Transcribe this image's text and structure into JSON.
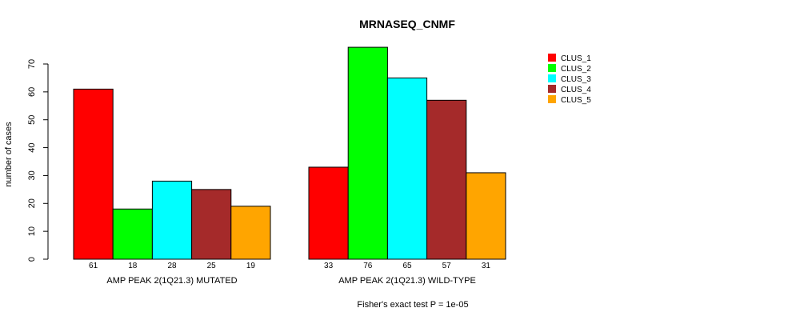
{
  "chart_data": {
    "type": "bar",
    "title": "MRNASEQ_CNMF",
    "ylabel": "number of cases",
    "ylim": [
      0,
      70
    ],
    "y_ticks": [
      0,
      10,
      20,
      30,
      40,
      50,
      60,
      70
    ],
    "groups": [
      {
        "label": "AMP PEAK  2(1Q21.3) MUTATED",
        "values": [
          61,
          18,
          28,
          25,
          19
        ],
        "value_labels": [
          "61",
          "18",
          "28",
          "25",
          "19"
        ]
      },
      {
        "label": "AMP PEAK  2(1Q21.3) WILD-TYPE",
        "values": [
          33,
          76,
          65,
          57,
          31
        ],
        "value_labels": [
          "33",
          "76",
          "65",
          "57",
          "31"
        ]
      }
    ],
    "series": [
      {
        "name": "CLUS_1",
        "color": "#ff0000"
      },
      {
        "name": "CLUS_2",
        "color": "#00ff00"
      },
      {
        "name": "CLUS_3",
        "color": "#00ffff"
      },
      {
        "name": "CLUS_4",
        "color": "#a52a2a"
      },
      {
        "name": "CLUS_5",
        "color": "#ffa500"
      }
    ],
    "legend_position": "top-right",
    "annotation": "Fisher's exact test P = 1e-05",
    "grid": false
  }
}
